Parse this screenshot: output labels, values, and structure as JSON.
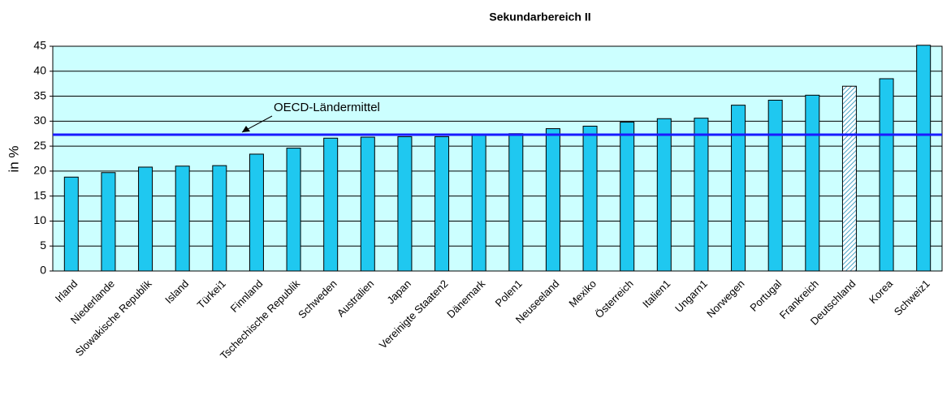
{
  "chart_data": {
    "type": "bar",
    "title": "Sekundarbereich II",
    "ylabel": "in %",
    "categories": [
      "Irland",
      "Niederlande",
      "Slowakische Republik",
      "Island",
      "Türkei1",
      "Finnland",
      "Tschechische Republik",
      "Schweden",
      "Australien",
      "Japan",
      "Vereinigte Staaten2",
      "Dänemark",
      "Polen1",
      "Neuseeland",
      "Mexiko",
      "Österreich",
      "Italien1",
      "Ungarn1",
      "Norwegen",
      "Portugal",
      "Frankreich",
      "Deutschland",
      "Korea",
      "Schweiz1"
    ],
    "values": [
      18.8,
      19.7,
      20.8,
      21.0,
      21.1,
      23.4,
      24.6,
      26.6,
      26.8,
      26.9,
      26.9,
      27.3,
      27.5,
      28.5,
      29.0,
      29.8,
      30.5,
      30.6,
      33.2,
      34.2,
      35.2,
      37.0,
      38.5,
      45.2
    ],
    "color": "#1fc8f0",
    "hatched": "Deutschland",
    "background": "#ccffff",
    "reference_line": {
      "label": "OECD-Ländermittel",
      "value": 27.3,
      "color": "#1a1aff"
    },
    "ylim": [
      0,
      45
    ],
    "yticks": [
      0,
      5,
      10,
      15,
      20,
      25,
      30,
      35,
      40,
      45
    ]
  }
}
